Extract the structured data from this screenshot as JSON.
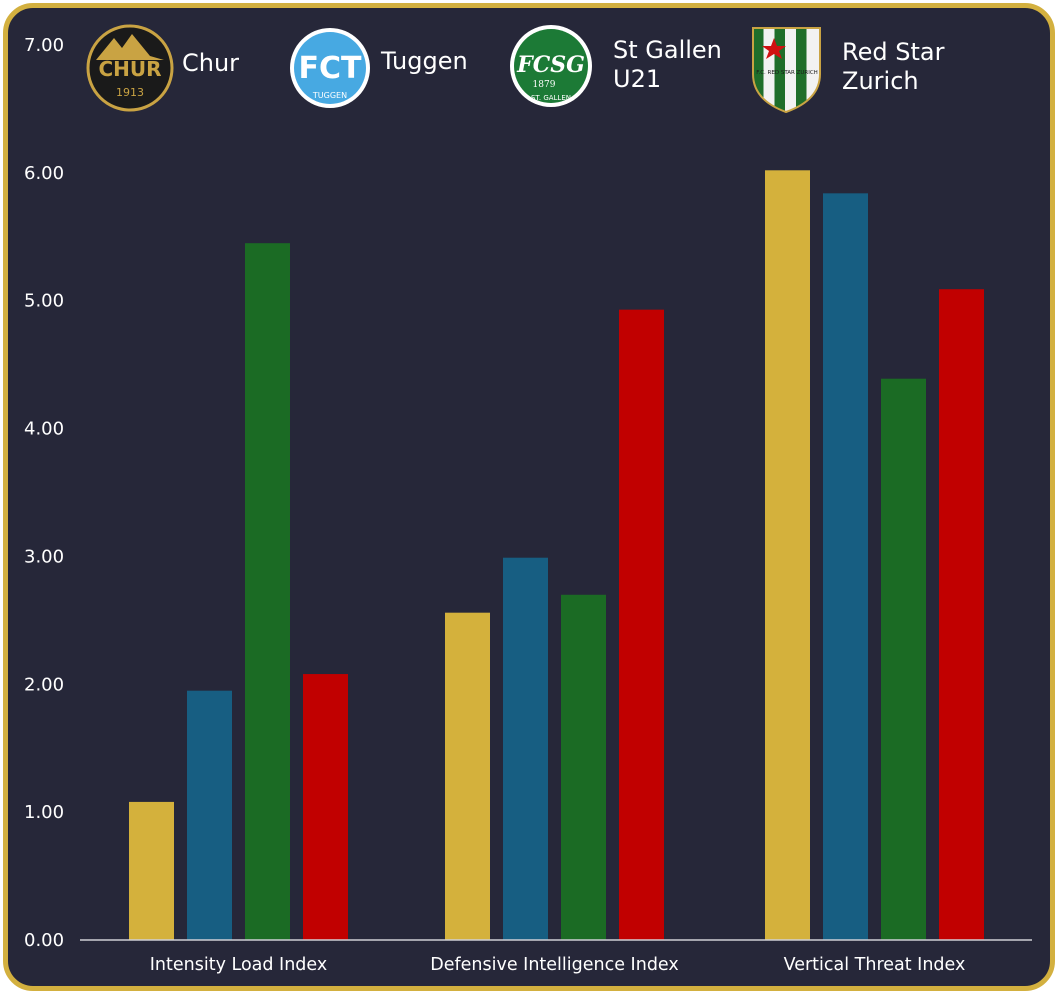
{
  "chart_data": {
    "type": "bar",
    "categories": [
      "Intensity Load Index",
      "Defensive Intelligence Index",
      "Vertical Threat Index"
    ],
    "series": [
      {
        "name": "Chur",
        "color": "#d4b13c",
        "values": [
          1.08,
          2.56,
          6.02
        ]
      },
      {
        "name": "Tuggen",
        "color": "#175e82",
        "values": [
          1.95,
          2.99,
          5.84
        ]
      },
      {
        "name": "St Gallen U21",
        "color": "#1b6b24",
        "values": [
          5.45,
          2.7,
          4.39
        ]
      },
      {
        "name": "Red Star Zurich",
        "color": "#c10000",
        "values": [
          2.08,
          4.93,
          5.09
        ]
      }
    ],
    "ylim": [
      0,
      7
    ],
    "yticks": [
      "0.00",
      "1.00",
      "2.00",
      "3.00",
      "4.00",
      "5.00",
      "6.00",
      "7.00"
    ],
    "legend_position": "top",
    "grid": false
  },
  "logos": {
    "chur": {
      "wordmark": "CHUR",
      "year": "1913"
    },
    "tuggen": {
      "wordmark": "FCT",
      "caption": "TUGGEN"
    },
    "stgallen": {
      "wordmark": "FCSG",
      "year": "1879",
      "caption": "ST. GALLEN"
    },
    "redstar": {
      "caption": "F.C. RED STAR ZURICH"
    }
  }
}
